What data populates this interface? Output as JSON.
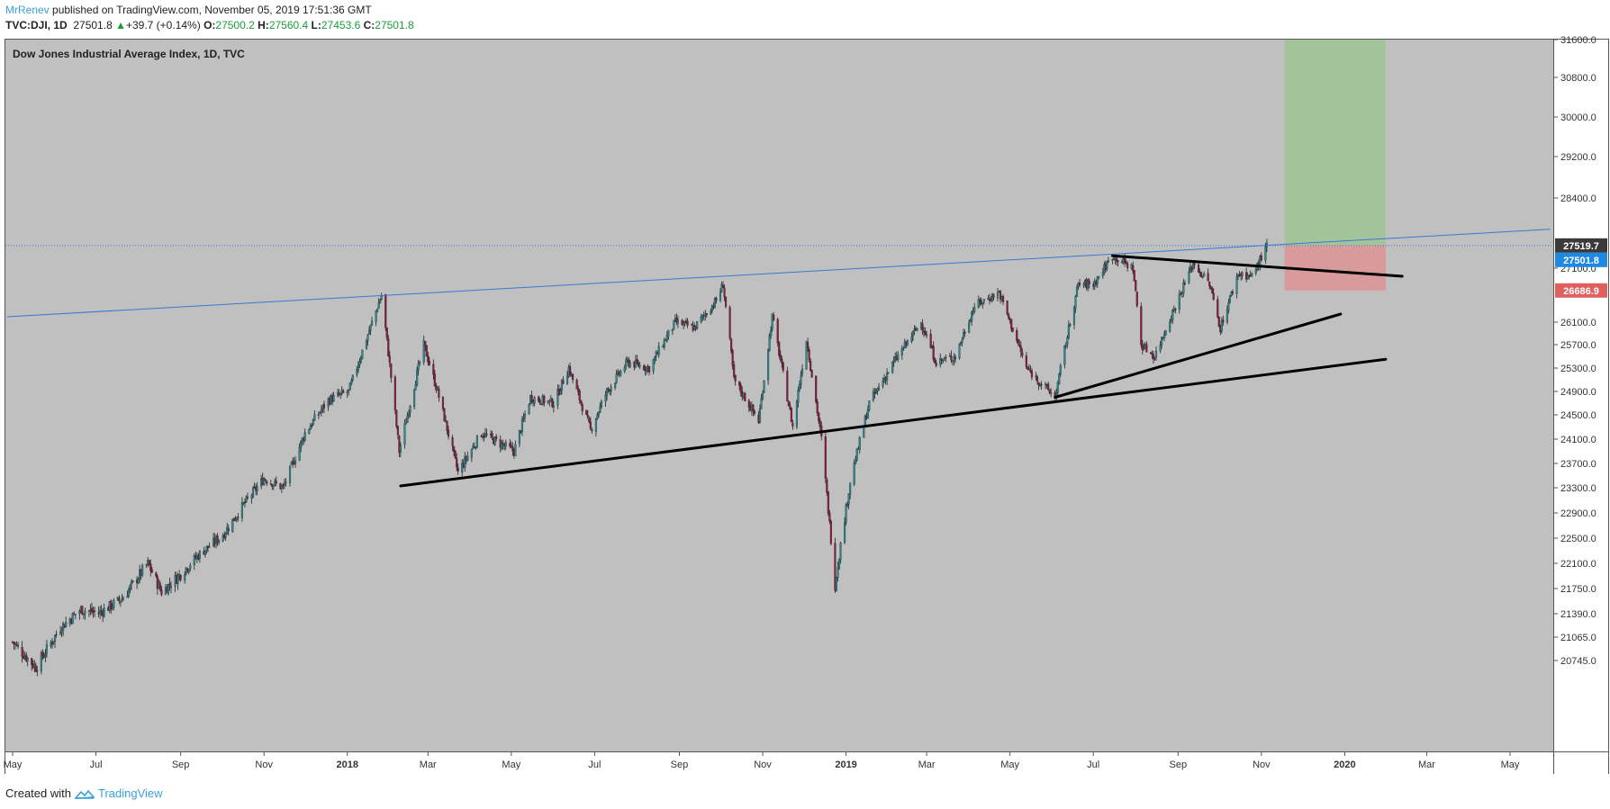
{
  "header": {
    "author": "MrRenev",
    "published": " published on TradingView.com, November 05, 2019 17:51:36 GMT",
    "symbol": "TVC:DJI, 1D",
    "last": "27501.8",
    "change": "+39.7 (+0.14%)",
    "o_label": "O:",
    "o": "27500.2",
    "h_label": "H:",
    "h": "27560.4",
    "l_label": "L:",
    "l": "27453.6",
    "c_label": "C:",
    "c": "27501.8"
  },
  "footer": {
    "created": "Created with",
    "brand": "TradingView"
  },
  "colors": {
    "plot_bg": "#c0c0c0",
    "up": "#2a8a8f",
    "down": "#8a1d3a",
    "trend_blue": "#3a78d0",
    "green_zone": "#a3c49a",
    "red_zone": "#d89a9a",
    "tag_gray": "#3a3a3a",
    "tag_blue": "#1e88e5",
    "tag_red": "#e06060"
  },
  "chart_data": {
    "type": "candlestick",
    "title": "Dow Jones Industrial Average Index, 1D, TVC",
    "x_ticks": [
      "May",
      "Jul",
      "Sep",
      "Nov",
      "2018",
      "Mar",
      "May",
      "Jul",
      "Sep",
      "Nov",
      "2019",
      "Mar",
      "May",
      "Jul",
      "Sep",
      "Nov",
      "2020",
      "Mar",
      "May"
    ],
    "bold_x_ticks": [
      "2018",
      "2019",
      "2020"
    ],
    "y_ticks": [
      31600.0,
      30800.0,
      30000.0,
      29200.0,
      28400.0,
      27100.0,
      26100.0,
      25700.0,
      25300.0,
      24900.0,
      24500.0,
      24100.0,
      23700.0,
      23300.0,
      22900.0,
      22500.0,
      22100.0,
      21750.0,
      21390.0,
      21065.0,
      20745.0
    ],
    "y_tick_labels": [
      "31600.0",
      "30800.0",
      "30000.0",
      "29200.0",
      "28400.0",
      "27100.0",
      "26100.0",
      "25700.0",
      "25300.0",
      "24900.0",
      "24500.0",
      "24100.0",
      "23700.0",
      "23300.0",
      "22900.0",
      "22500.0",
      "22100.0",
      "21750.0",
      "21390.0",
      "21065.0",
      "20745.0"
    ],
    "price_tags": [
      {
        "label": "27519.7",
        "value": 27519.7,
        "kind": "gray"
      },
      {
        "label": "27501.8",
        "value": 27501.8,
        "kind": "blue"
      },
      {
        "label": "26686.9",
        "value": 26686.9,
        "kind": "red"
      }
    ],
    "close_path": [
      [
        "2017-05-01",
        21000
      ],
      [
        "2017-05-18",
        20650
      ],
      [
        "2017-06-05",
        21200
      ],
      [
        "2017-06-20",
        21450
      ],
      [
        "2017-07-03",
        21400
      ],
      [
        "2017-07-20",
        21600
      ],
      [
        "2017-08-08",
        22100
      ],
      [
        "2017-08-18",
        21700
      ],
      [
        "2017-09-01",
        21950
      ],
      [
        "2017-09-15",
        22250
      ],
      [
        "2017-10-02",
        22550
      ],
      [
        "2017-10-16",
        23000
      ],
      [
        "2017-11-01",
        23450
      ],
      [
        "2017-11-15",
        23300
      ],
      [
        "2017-12-01",
        24200
      ],
      [
        "2017-12-18",
        24750
      ],
      [
        "2018-01-02",
        24900
      ],
      [
        "2018-01-15",
        25800
      ],
      [
        "2018-01-26",
        26600
      ],
      [
        "2018-02-08",
        23900
      ],
      [
        "2018-02-26",
        25700
      ],
      [
        "2018-03-08",
        24900
      ],
      [
        "2018-03-23",
        23550
      ],
      [
        "2018-04-09",
        24200
      ],
      [
        "2018-04-25",
        24000
      ],
      [
        "2018-05-03",
        23900
      ],
      [
        "2018-05-15",
        24800
      ],
      [
        "2018-06-01",
        24700
      ],
      [
        "2018-06-12",
        25300
      ],
      [
        "2018-06-28",
        24250
      ],
      [
        "2018-07-10",
        24900
      ],
      [
        "2018-07-25",
        25400
      ],
      [
        "2018-08-10",
        25300
      ],
      [
        "2018-08-29",
        26100
      ],
      [
        "2018-09-12",
        26000
      ],
      [
        "2018-09-28",
        26500
      ],
      [
        "2018-10-03",
        26800
      ],
      [
        "2018-10-11",
        25100
      ],
      [
        "2018-10-29",
        24400
      ],
      [
        "2018-11-08",
        26200
      ],
      [
        "2018-11-23",
        24300
      ],
      [
        "2018-12-03",
        25800
      ],
      [
        "2018-12-14",
        24100
      ],
      [
        "2018-12-24",
        21800
      ],
      [
        "2019-01-04",
        23400
      ],
      [
        "2019-01-18",
        24700
      ],
      [
        "2019-02-05",
        25400
      ],
      [
        "2019-02-25",
        26100
      ],
      [
        "2019-03-08",
        25400
      ],
      [
        "2019-03-22",
        25500
      ],
      [
        "2019-04-05",
        26400
      ],
      [
        "2019-04-23",
        26650
      ],
      [
        "2019-05-13",
        25300
      ],
      [
        "2019-06-03",
        24800
      ],
      [
        "2019-06-20",
        26800
      ],
      [
        "2019-07-01",
        26800
      ],
      [
        "2019-07-15",
        27330
      ],
      [
        "2019-07-30",
        27100
      ],
      [
        "2019-08-05",
        25700
      ],
      [
        "2019-08-15",
        25500
      ],
      [
        "2019-08-30",
        26400
      ],
      [
        "2019-09-12",
        27200
      ],
      [
        "2019-09-24",
        26800
      ],
      [
        "2019-10-02",
        26000
      ],
      [
        "2019-10-15",
        27000
      ],
      [
        "2019-10-25",
        26950
      ],
      [
        "2019-11-05",
        27500
      ]
    ],
    "trendlines": [
      {
        "color": "blue",
        "width": 1,
        "from": [
          "2017-04-27",
          26200
        ],
        "to": [
          "2020-05-30",
          27820
        ]
      },
      {
        "color": "black",
        "width": 3,
        "from": [
          "2018-02-09",
          23330
        ],
        "to": [
          "2020-01-31",
          25450
        ]
      },
      {
        "color": "black",
        "width": 3,
        "from": [
          "2019-06-03",
          24800
        ],
        "to": [
          "2019-12-29",
          26250
        ]
      },
      {
        "color": "black",
        "width": 3,
        "from": [
          "2019-07-15",
          27330
        ],
        "to": [
          "2020-02-12",
          26950
        ]
      }
    ],
    "long_position": {
      "from": "2019-11-18",
      "to": "2020-01-31",
      "entry": 27519.7,
      "target": 31700,
      "stop": 26686.9
    },
    "last_price_line": 27519.7
  }
}
